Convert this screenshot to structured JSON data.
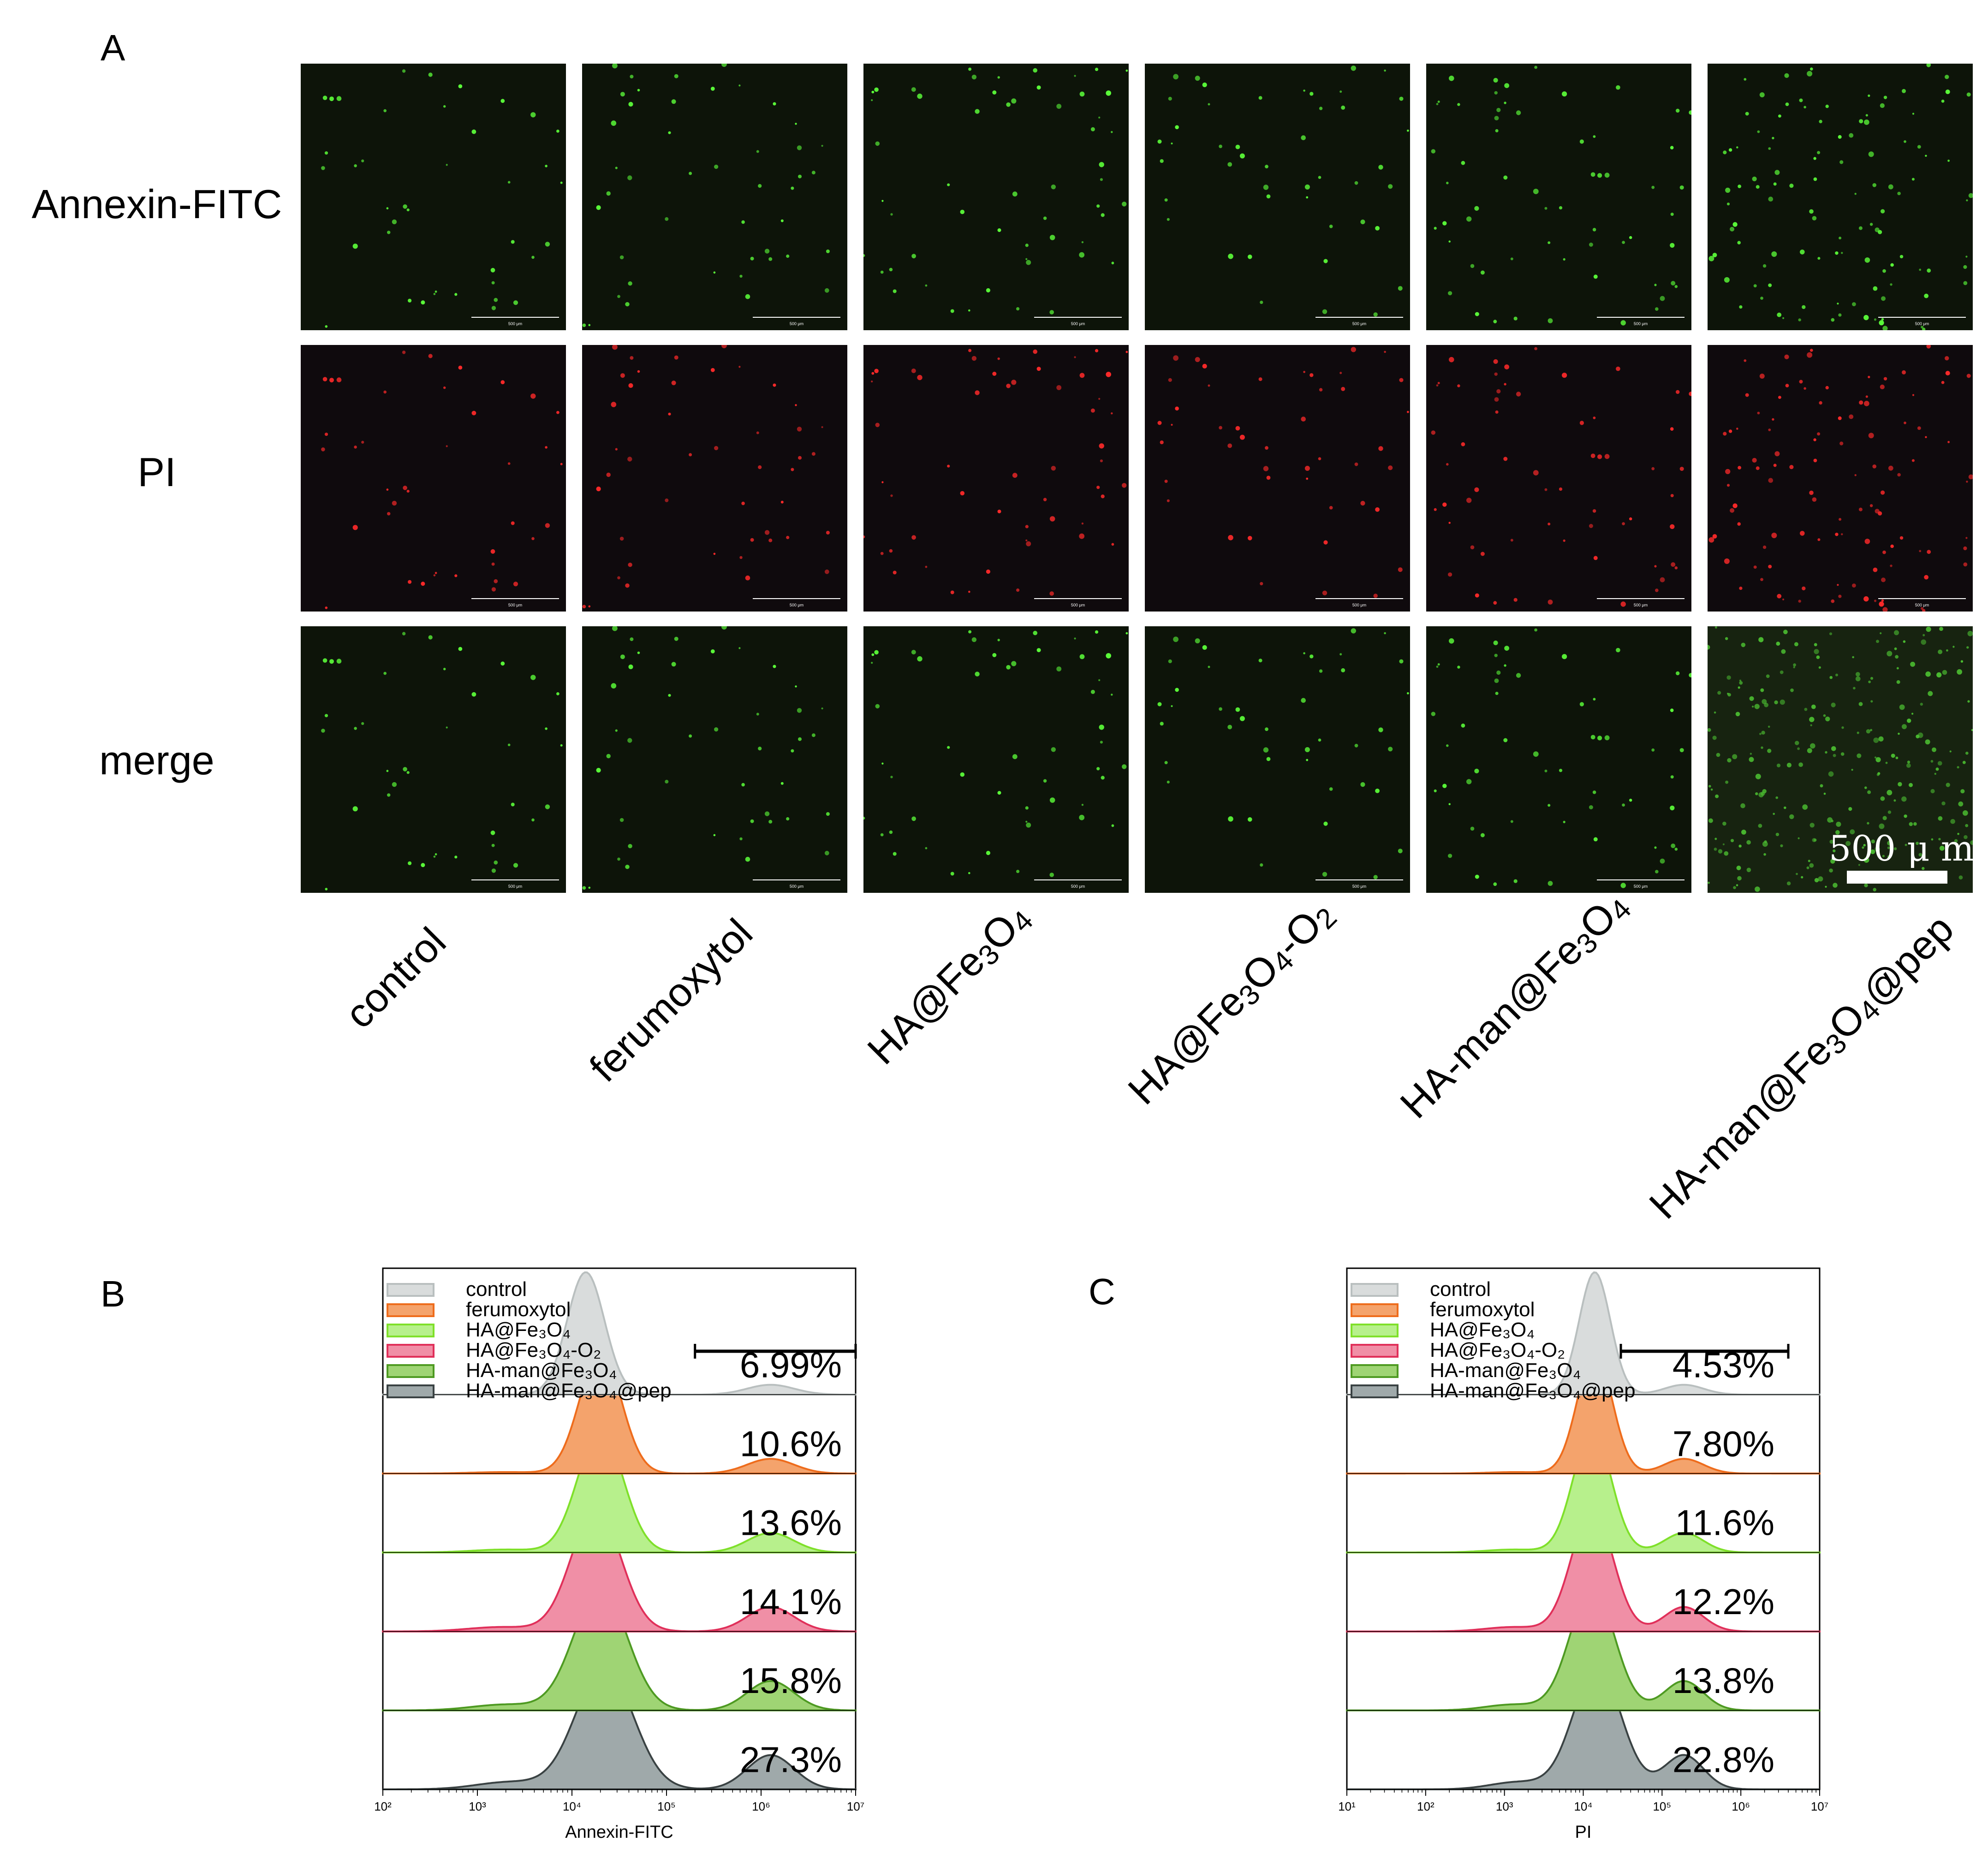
{
  "panel_labels": {
    "a": "A",
    "b": "B",
    "c": "C"
  },
  "row_labels": [
    "Annexin-FITC",
    "PI",
    "merge"
  ],
  "groups": [
    "control",
    "ferumoxytol",
    "HA@Fe₃O₄",
    "HA@Fe₃O₄-O₂",
    "HA-man@Fe₃O₄",
    "HA-man@Fe₃O₄@pep"
  ],
  "micro_scalebar_small": "500 μm",
  "scalebar_label": "500 μ m",
  "colors": {
    "green_bg": "#0d1409",
    "red_bg": "#0f0a0d",
    "green_dot": "#5cff3a",
    "red_dot": "#ff2a2a"
  },
  "chart_data": [
    {
      "type": "area",
      "title": "B",
      "xlabel": "Annexin-FITC",
      "xscale": "log",
      "xlim": [
        100,
        10000000
      ],
      "tick_labels": [
        "10²",
        "10³",
        "10⁴",
        "10⁵",
        "10⁶",
        "10⁷"
      ],
      "legend": [
        "control",
        "ferumoxytol",
        "HA@Fe₃O₄",
        "HA@Fe₃O₄-O₂",
        "HA-man@Fe₃O₄",
        "HA-man@Fe₃O₄@pep"
      ],
      "gate": [
        200000,
        10000000
      ],
      "series": [
        {
          "name": "control",
          "percent": "6.99%",
          "peak": 14000,
          "color": "#d9dcdc"
        },
        {
          "name": "ferumoxytol",
          "percent": "10.6%",
          "peak": 20000,
          "color": "#f4a36c"
        },
        {
          "name": "HA@Fe₃O₄",
          "percent": "13.6%",
          "peak": 20000,
          "color": "#b7f08c"
        },
        {
          "name": "HA@Fe₃O₄-O₂",
          "percent": "14.1%",
          "peak": 18000,
          "color": "#f08fa6"
        },
        {
          "name": "HA-man@Fe₃O₄",
          "percent": "15.8%",
          "peak": 20000,
          "color": "#9fd474"
        },
        {
          "name": "HA-man@Fe₃O₄@pep",
          "percent": "27.3%",
          "peak": 22000,
          "color": "#9fa9aa"
        }
      ]
    },
    {
      "type": "area",
      "title": "C",
      "xlabel": "PI",
      "xscale": "log",
      "xlim": [
        10,
        10000000
      ],
      "tick_labels": [
        "10¹",
        "10²",
        "10³",
        "10⁴",
        "10⁵",
        "10⁶",
        "10⁷"
      ],
      "legend": [
        "control",
        "ferumoxytol",
        "HA@Fe₃O₄",
        "HA@Fe₃O₄-O₂",
        "HA-man@Fe₃O₄",
        "HA-man@Fe₃O₄@pep"
      ],
      "gate": [
        30000,
        4000000
      ],
      "series": [
        {
          "name": "control",
          "percent": "4.53%",
          "peak": 14000,
          "color": "#d9dcdc"
        },
        {
          "name": "ferumoxytol",
          "percent": "7.80%",
          "peak": 14000,
          "color": "#f4a36c"
        },
        {
          "name": "HA@Fe₃O₄",
          "percent": "11.6%",
          "peak": 13000,
          "color": "#b7f08c"
        },
        {
          "name": "HA@Fe₃O₄-O₂",
          "percent": "12.2%",
          "peak": 13000,
          "color": "#f08fa6"
        },
        {
          "name": "HA-man@Fe₃O₄",
          "percent": "13.8%",
          "peak": 13000,
          "color": "#9fd474"
        },
        {
          "name": "HA-man@Fe₃O₄@pep",
          "percent": "22.8%",
          "peak": 15000,
          "color": "#9fa9aa"
        }
      ]
    }
  ]
}
